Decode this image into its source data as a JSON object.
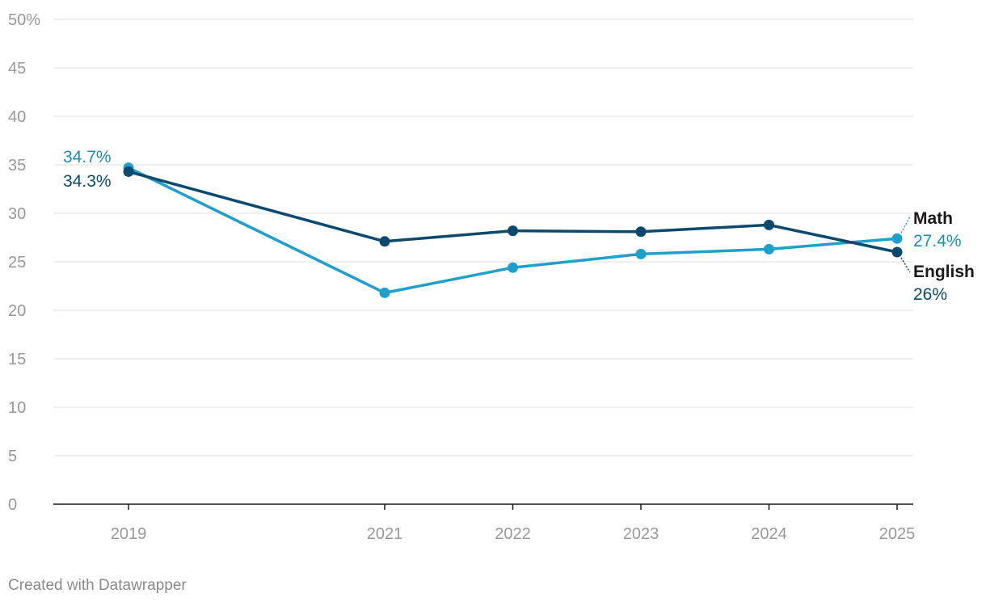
{
  "chart_data": {
    "type": "line",
    "x": [
      2019,
      2021,
      2022,
      2023,
      2024,
      2025
    ],
    "x_tick_labels": [
      "2019",
      "2021",
      "2022",
      "2023",
      "2024",
      "2025"
    ],
    "ylim": [
      0,
      50
    ],
    "y_ticks": [
      0,
      5,
      10,
      15,
      20,
      25,
      30,
      35,
      40,
      45,
      50
    ],
    "y_tick_labels": [
      "0",
      "5",
      "10",
      "15",
      "20",
      "25",
      "30",
      "35",
      "40",
      "45",
      "50%"
    ],
    "grid": true,
    "series": [
      {
        "name": "English",
        "color": "#0b4a6e",
        "values": [
          34.3,
          27.1,
          28.2,
          28.1,
          28.8,
          26.0
        ],
        "start_label": "34.3%",
        "end_label": "26%"
      },
      {
        "name": "Math",
        "color": "#1fa0cc",
        "values": [
          34.7,
          21.8,
          24.4,
          25.8,
          26.3,
          27.4
        ],
        "start_label": "34.7%",
        "end_label": "27.4%"
      }
    ]
  },
  "footer": {
    "credit": "Created with Datawrapper"
  }
}
